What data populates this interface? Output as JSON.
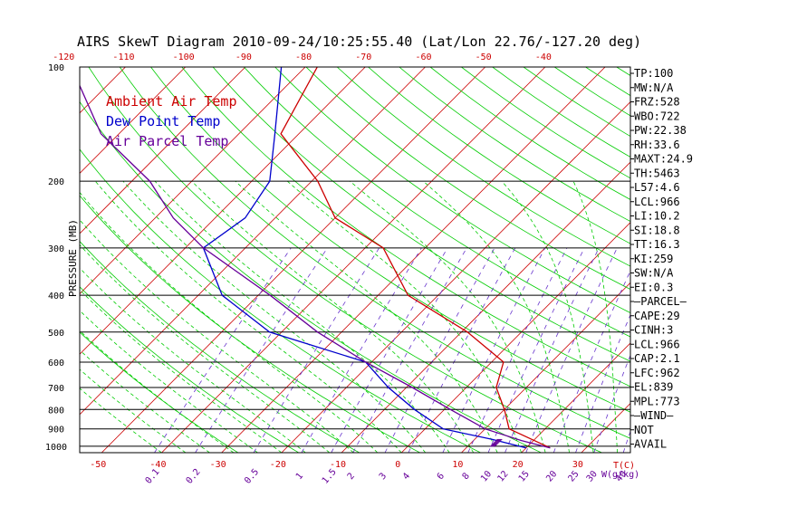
{
  "chart_data": {
    "type": "line",
    "title": "AIRS SkewT Diagram 2010-09-24/10:25:55.40 (Lat/Lon 22.76/-127.20 deg)",
    "ylabel": "PRESSURE (MB)",
    "xlabel_units": "T(C)",
    "mixing_units": "W(g/kg)",
    "y_scale": "log",
    "ylim": [
      1040,
      100
    ],
    "xlim_bottom_temp": [
      -52,
      40
    ],
    "pressure_ticks": [
      100,
      200,
      300,
      400,
      500,
      600,
      700,
      800,
      900,
      1000
    ],
    "bottom_temp_ticks": [
      -50,
      -40,
      -30,
      -20,
      -10,
      0,
      10,
      20,
      30
    ],
    "top_temp_ticks": [
      -120,
      -110,
      -100,
      -90,
      -80,
      -70,
      -60,
      -50,
      -40
    ],
    "mixing_ratio_ticks": [
      "0.1",
      "0.2",
      "0.5",
      "1",
      "1.5",
      "2",
      "3",
      "4",
      "6",
      "8",
      "10",
      "12",
      "15",
      "20",
      "25",
      "30",
      "40"
    ],
    "series": [
      {
        "name": "Ambient Air Temp",
        "color": "#cc0000",
        "points": [
          [
            100,
            -78
          ],
          [
            150,
            -73
          ],
          [
            200,
            -59
          ],
          [
            250,
            -50
          ],
          [
            300,
            -37
          ],
          [
            400,
            -25
          ],
          [
            500,
            -9
          ],
          [
            600,
            2
          ],
          [
            700,
            5
          ],
          [
            800,
            10
          ],
          [
            900,
            14
          ],
          [
            1010,
            24
          ]
        ]
      },
      {
        "name": "Dew Point Temp",
        "color": "#0000cc",
        "points": [
          [
            100,
            -84
          ],
          [
            150,
            -74
          ],
          [
            200,
            -67
          ],
          [
            250,
            -65
          ],
          [
            300,
            -67
          ],
          [
            400,
            -56
          ],
          [
            500,
            -42
          ],
          [
            600,
            -21
          ],
          [
            700,
            -13
          ],
          [
            800,
            -5
          ],
          [
            900,
            3
          ],
          [
            960,
            13
          ],
          [
            1010,
            20
          ]
        ]
      },
      {
        "name": "Air Parcel Temp",
        "color": "#660099",
        "points": [
          [
            100,
            -119
          ],
          [
            150,
            -103
          ],
          [
            200,
            -87
          ],
          [
            250,
            -77
          ],
          [
            300,
            -67
          ],
          [
            400,
            -48
          ],
          [
            500,
            -34
          ],
          [
            600,
            -21
          ],
          [
            700,
            -9
          ],
          [
            800,
            1
          ],
          [
            900,
            10
          ],
          [
            966,
            18
          ],
          [
            1010,
            24
          ]
        ]
      }
    ],
    "legend": [
      {
        "label": "Ambient Air Temp",
        "color": "#cc0000"
      },
      {
        "label": "Dew Point Temp",
        "color": "#0000cc"
      },
      {
        "label": "Air Parcel Temp",
        "color": "#660099"
      }
    ],
    "stats": [
      "TP:100",
      "MW:N/A",
      "FRZ:528",
      "WBO:722",
      "PW:22.38",
      "RH:33.6",
      "MAXT:24.9",
      "TH:5463",
      "L57:4.6",
      "LCL:966",
      "LI:10.2",
      "SI:18.8",
      "TT:16.3",
      "KI:259",
      "SW:N/A",
      "EI:0.3",
      "—PARCEL—",
      "CAPE:29",
      "CINH:3",
      "LCL:966",
      "CAP:2.1",
      "LFC:962",
      "EL:839",
      "MPL:773",
      "—WIND—",
      "NOT",
      "AVAIL"
    ],
    "colors": {
      "isotherm": "#cc0000",
      "dry_adiabat": "#00cc00",
      "moist_adiabat": "#00cc00",
      "mixing_ratio": "#6633cc",
      "isobar": "#000000",
      "cape_hatch": "#660099"
    },
    "grid": true,
    "legend_position": "top-left"
  }
}
